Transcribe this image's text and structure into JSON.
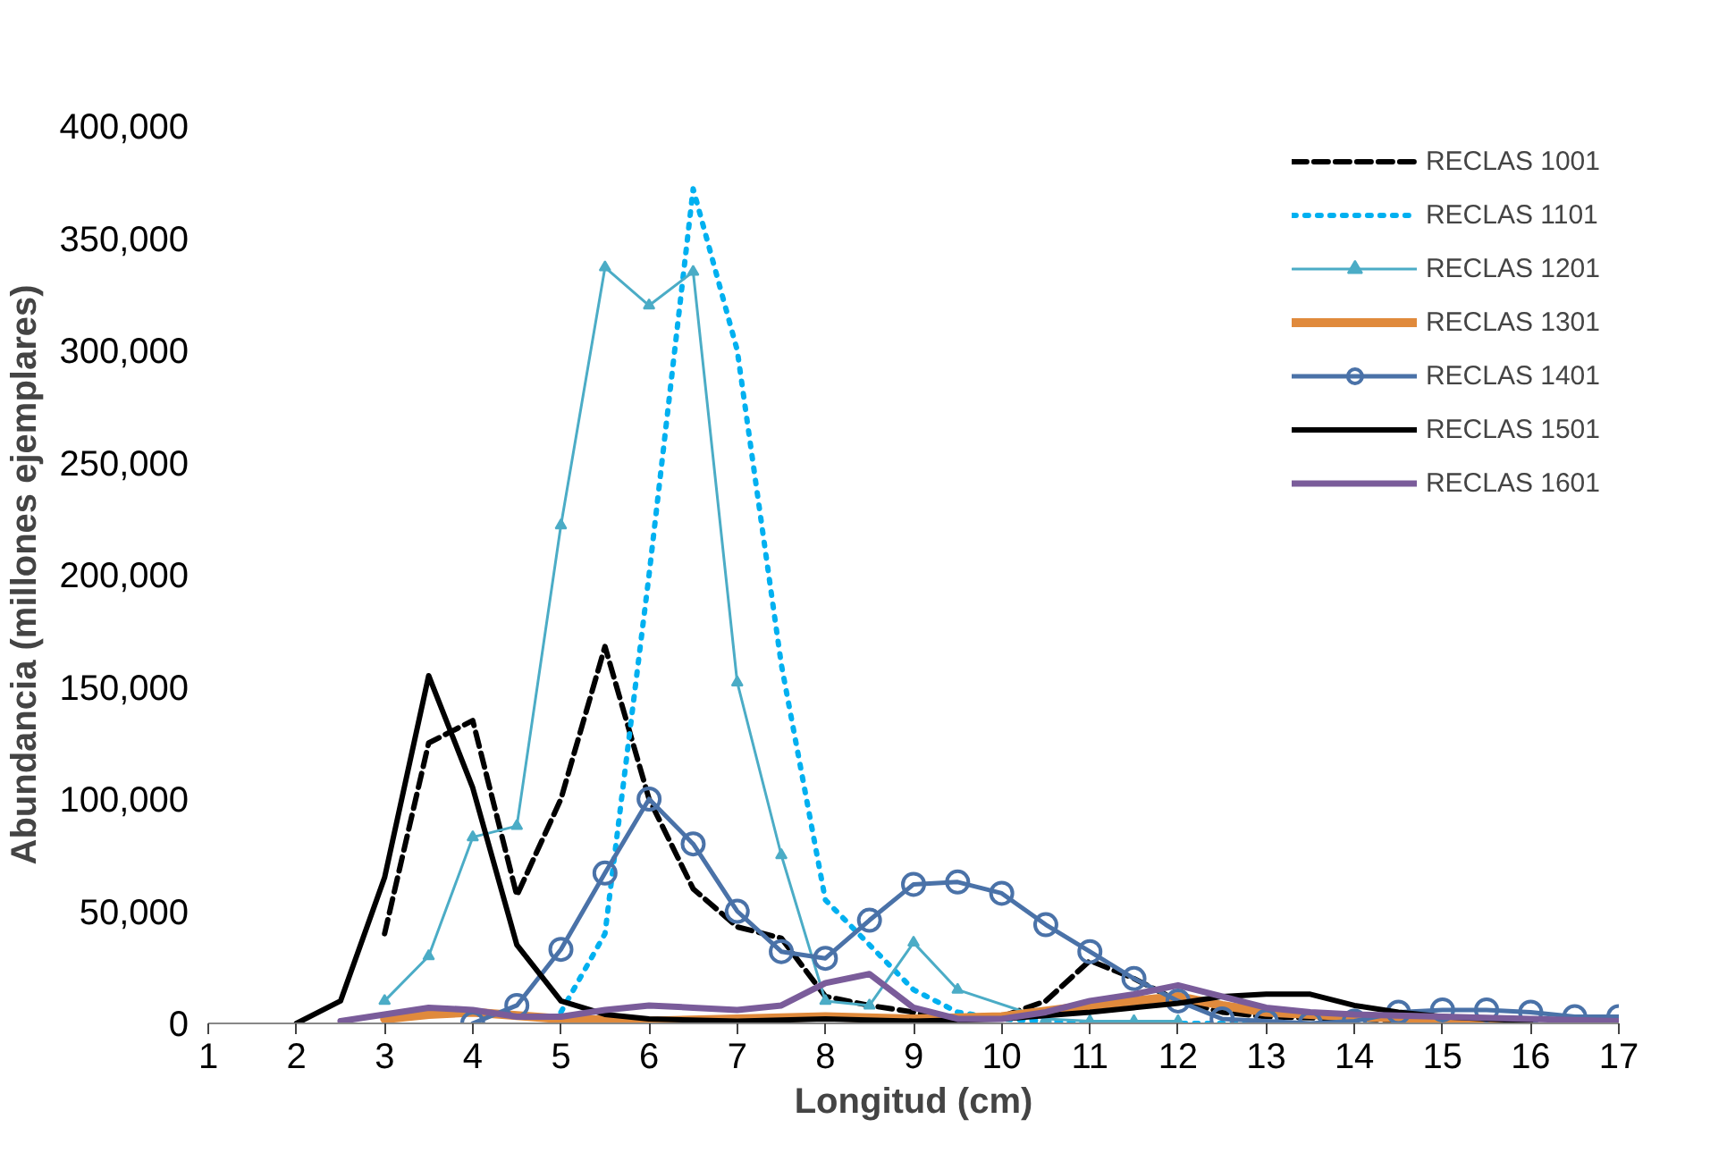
{
  "chart_data": {
    "type": "line",
    "xlabel": "Longitud (cm)",
    "ylabel": "Abundancia (millones ejemplares)",
    "xlim": [
      1,
      17
    ],
    "xticks": [
      1,
      2,
      3,
      4,
      5,
      6,
      7,
      8,
      9,
      10,
      11,
      12,
      13,
      14,
      15,
      16,
      17
    ],
    "ylim": [
      0,
      400000
    ],
    "yticks": [
      {
        "value": 0,
        "label": "0"
      },
      {
        "value": 50000,
        "label": "50,000"
      },
      {
        "value": 100000,
        "label": "100,000"
      },
      {
        "value": 150000,
        "label": "150,000"
      },
      {
        "value": 200000,
        "label": "200,000"
      },
      {
        "value": 250000,
        "label": "250,000"
      },
      {
        "value": 300000,
        "label": "300,000"
      },
      {
        "value": 350000,
        "label": "350,000"
      },
      {
        "value": 400000,
        "label": "400,000"
      }
    ],
    "grid": false,
    "legend": "top right",
    "marker": "none",
    "series": [
      {
        "name": "RECLAS 1001",
        "color": "#000000",
        "line_style": "dashed",
        "x": [
          3,
          3.5,
          4,
          4.5,
          5,
          5.5,
          6,
          6.5,
          7,
          7.5,
          8,
          8.5,
          9,
          9.5,
          10,
          10.5,
          11,
          11.5,
          12,
          12.5,
          13,
          14,
          15
        ],
        "values": [
          40000,
          125000,
          135000,
          57000,
          100000,
          168000,
          100000,
          60000,
          43000,
          38000,
          12000,
          8000,
          5000,
          2000,
          3000,
          10000,
          28000,
          20000,
          10000,
          5000,
          3000,
          2000,
          1000
        ]
      },
      {
        "name": "RECLAS 1101",
        "color": "#00b0f0",
        "line_style": "dotted",
        "x": [
          5,
          5.5,
          6,
          6.5,
          7,
          7.5,
          8,
          8.5,
          9,
          9.5,
          10,
          10.5,
          11,
          12,
          13
        ],
        "values": [
          5000,
          40000,
          200000,
          372000,
          300000,
          160000,
          55000,
          35000,
          15000,
          5000,
          2000,
          1000,
          0,
          0,
          0
        ]
      },
      {
        "name": "RECLAS 1201",
        "color": "#4bacc6",
        "marker": "triangle",
        "x": [
          3,
          3.5,
          4,
          4.5,
          5,
          5.5,
          6,
          6.5,
          7,
          7.5,
          8,
          8.5,
          9,
          9.5,
          10.5,
          11,
          11.5,
          12
        ],
        "values": [
          10000,
          30000,
          83000,
          88000,
          222000,
          337000,
          320000,
          335000,
          152000,
          75000,
          10000,
          8000,
          36000,
          15000,
          2000,
          1000,
          1000,
          1000
        ]
      },
      {
        "name": "RECLAS 1301",
        "color": "#e08a3c",
        "x": [
          3,
          3.5,
          4,
          5,
          6,
          7,
          8,
          9,
          10,
          11,
          12,
          12.5,
          13,
          14,
          15,
          16
        ],
        "values": [
          2000,
          4000,
          5000,
          2000,
          1000,
          2000,
          3000,
          2000,
          3000,
          8000,
          12000,
          8000,
          5000,
          3000,
          2000,
          1000
        ]
      },
      {
        "name": "RECLAS 1401",
        "color": "#4a72a8",
        "marker": "circle",
        "x": [
          4,
          4.5,
          5,
          5.5,
          6,
          6.5,
          7,
          7.5,
          8,
          8.5,
          9,
          9.5,
          10,
          10.5,
          11,
          11.5,
          12,
          12.5,
          13,
          13.5,
          14,
          14.5,
          15,
          15.5,
          16,
          16.5,
          17
        ],
        "values": [
          0,
          8000,
          33000,
          67000,
          100000,
          80000,
          50000,
          32000,
          29000,
          46000,
          62000,
          63000,
          58000,
          44000,
          32000,
          20000,
          10000,
          2000,
          1000,
          0,
          1000,
          5000,
          6000,
          6000,
          5000,
          3000,
          3000
        ]
      },
      {
        "name": "RECLAS 1501",
        "color": "#000000",
        "x": [
          2,
          2.5,
          3,
          3.5,
          4,
          4.5,
          5,
          5.5,
          6,
          7,
          8,
          9,
          10,
          11,
          11.5,
          12,
          12.5,
          13,
          13.5,
          14,
          14.5,
          15,
          16
        ],
        "values": [
          0,
          10000,
          65000,
          155000,
          105000,
          35000,
          10000,
          4000,
          2000,
          1000,
          2000,
          1000,
          2000,
          5000,
          7000,
          9000,
          12000,
          13000,
          13000,
          8000,
          5000,
          3000,
          1000
        ]
      },
      {
        "name": "RECLAS 1601",
        "color": "#7a5c9a",
        "x": [
          2.5,
          3,
          3.5,
          4,
          4.5,
          5,
          5.5,
          6,
          6.5,
          7,
          7.5,
          8,
          8.5,
          9,
          9.5,
          10,
          10.5,
          11,
          11.5,
          12,
          12.5,
          13,
          13.5,
          14,
          15,
          16,
          17
        ],
        "values": [
          1000,
          4000,
          7000,
          6000,
          3000,
          3000,
          6000,
          8000,
          7000,
          6000,
          8000,
          18000,
          22000,
          7000,
          2000,
          2000,
          5000,
          10000,
          13000,
          17000,
          12000,
          7000,
          5000,
          4000,
          3000,
          2000,
          1000
        ]
      }
    ]
  }
}
